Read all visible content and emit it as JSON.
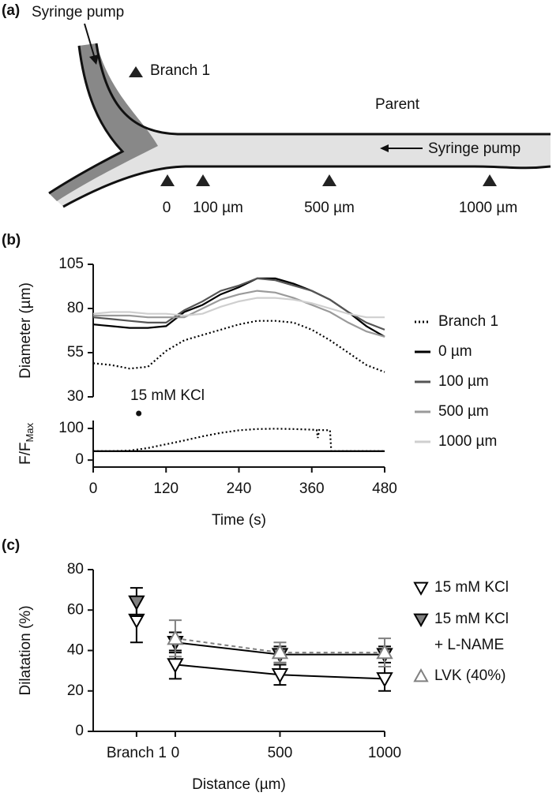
{
  "panel_a": {
    "label": "(a)",
    "syringe_pump_top": "Syringe pump",
    "branch_label": "Branch 1",
    "parent_label": "Parent",
    "syringe_pump_right": "Syringe pump",
    "positions": [
      "0",
      "100 µm",
      "500 µm",
      "1000 µm"
    ]
  },
  "chart_data": [
    {
      "type": "line",
      "panel_label": "(b)",
      "y_label": "Diameter (µm)",
      "x": [
        0,
        30,
        60,
        90,
        120,
        150,
        180,
        210,
        240,
        270,
        300,
        330,
        360,
        390,
        420,
        450,
        480
      ],
      "xlim": [
        0,
        480
      ],
      "ylim": [
        30,
        105
      ],
      "yticks": [
        30,
        55,
        80,
        105
      ],
      "annotation": {
        "text": "15 mM KCl",
        "x": 75
      },
      "series": [
        {
          "name": "Branch 1",
          "color": "#000000",
          "dash": "2,3",
          "values": [
            49,
            48,
            46,
            47,
            56,
            62,
            65,
            68,
            71,
            73,
            73,
            72,
            68,
            62,
            55,
            48,
            44
          ]
        },
        {
          "name": "0 µm",
          "color": "#000000",
          "values": [
            71,
            70,
            69,
            69,
            70,
            78,
            82,
            88,
            92,
            97,
            97,
            94,
            90,
            85,
            78,
            70,
            64
          ]
        },
        {
          "name": "100 µm",
          "color": "#555555",
          "values": [
            75,
            74,
            73,
            72,
            72,
            79,
            84,
            90,
            93,
            97,
            96,
            93,
            90,
            85,
            78,
            72,
            68
          ]
        },
        {
          "name": "500 µm",
          "color": "#9a9a9a",
          "values": [
            76,
            76,
            76,
            75,
            75,
            75,
            80,
            85,
            88,
            90,
            89,
            86,
            82,
            78,
            72,
            67,
            64
          ]
        },
        {
          "name": "1000 µm",
          "color": "#cfcfcf",
          "values": [
            77,
            78,
            78,
            77,
            77,
            76,
            77,
            81,
            84,
            86,
            86,
            85,
            83,
            80,
            77,
            75,
            75
          ]
        }
      ]
    },
    {
      "type": "line",
      "y_label": "F/F",
      "y_label_sub": "Max",
      "x_label": "Time (s)",
      "x": [
        0,
        30,
        60,
        90,
        120,
        150,
        180,
        210,
        240,
        270,
        300,
        330,
        360,
        368,
        370,
        372,
        390,
        392,
        420,
        450,
        480
      ],
      "xlim": [
        0,
        480
      ],
      "xticks": [
        0,
        120,
        240,
        360,
        480
      ],
      "ylim": [
        -22,
        125
      ],
      "yticks": [
        0,
        100
      ],
      "series": [
        {
          "color": "#000000",
          "dash": "2,3",
          "values": [
            28,
            28,
            30,
            38,
            50,
            62,
            75,
            86,
            94,
            98,
            99,
            98,
            96,
            95,
            70,
            95,
            94,
            28,
            28,
            28,
            28
          ]
        },
        {
          "color": "#000000",
          "values": [
            28,
            28,
            28,
            28,
            28,
            28,
            28,
            28,
            28,
            28,
            28,
            28,
            28,
            28,
            28,
            28,
            28,
            28,
            28,
            28,
            28
          ]
        }
      ]
    },
    {
      "type": "errorbar",
      "panel_label": "(c)",
      "y_label": "Dilatation (%)",
      "x_label": "Distance (µm)",
      "x": [
        0,
        500,
        1000
      ],
      "xlim": [
        -392,
        1000
      ],
      "xticks": [
        {
          "value": -185,
          "label": "Branch 1"
        },
        0,
        500,
        1000
      ],
      "ylim": [
        0,
        80
      ],
      "yticks": [
        0,
        20,
        40,
        60,
        80
      ],
      "series": [
        {
          "name": "15 mM KCl",
          "marker": "down",
          "fill": "#ffffff",
          "color": "#000000",
          "branch_value": 55,
          "branch_error": 11,
          "values": [
            33,
            28,
            26
          ],
          "errors": [
            7,
            5,
            6
          ]
        },
        {
          "name": "15 mM KCl + L-NAME",
          "marker": "down",
          "fill": "#808080",
          "color": "#000000",
          "branch_value": 64,
          "branch_error": 7,
          "values": [
            44,
            38,
            38
          ],
          "errors": [
            5,
            4,
            4
          ]
        },
        {
          "name": "LVK (40%)",
          "marker": "up",
          "fill": "#ffffff",
          "color": "#808080",
          "dash": "5,4",
          "values": [
            46,
            39,
            39
          ],
          "errors": [
            9,
            5,
            7
          ]
        }
      ]
    }
  ]
}
